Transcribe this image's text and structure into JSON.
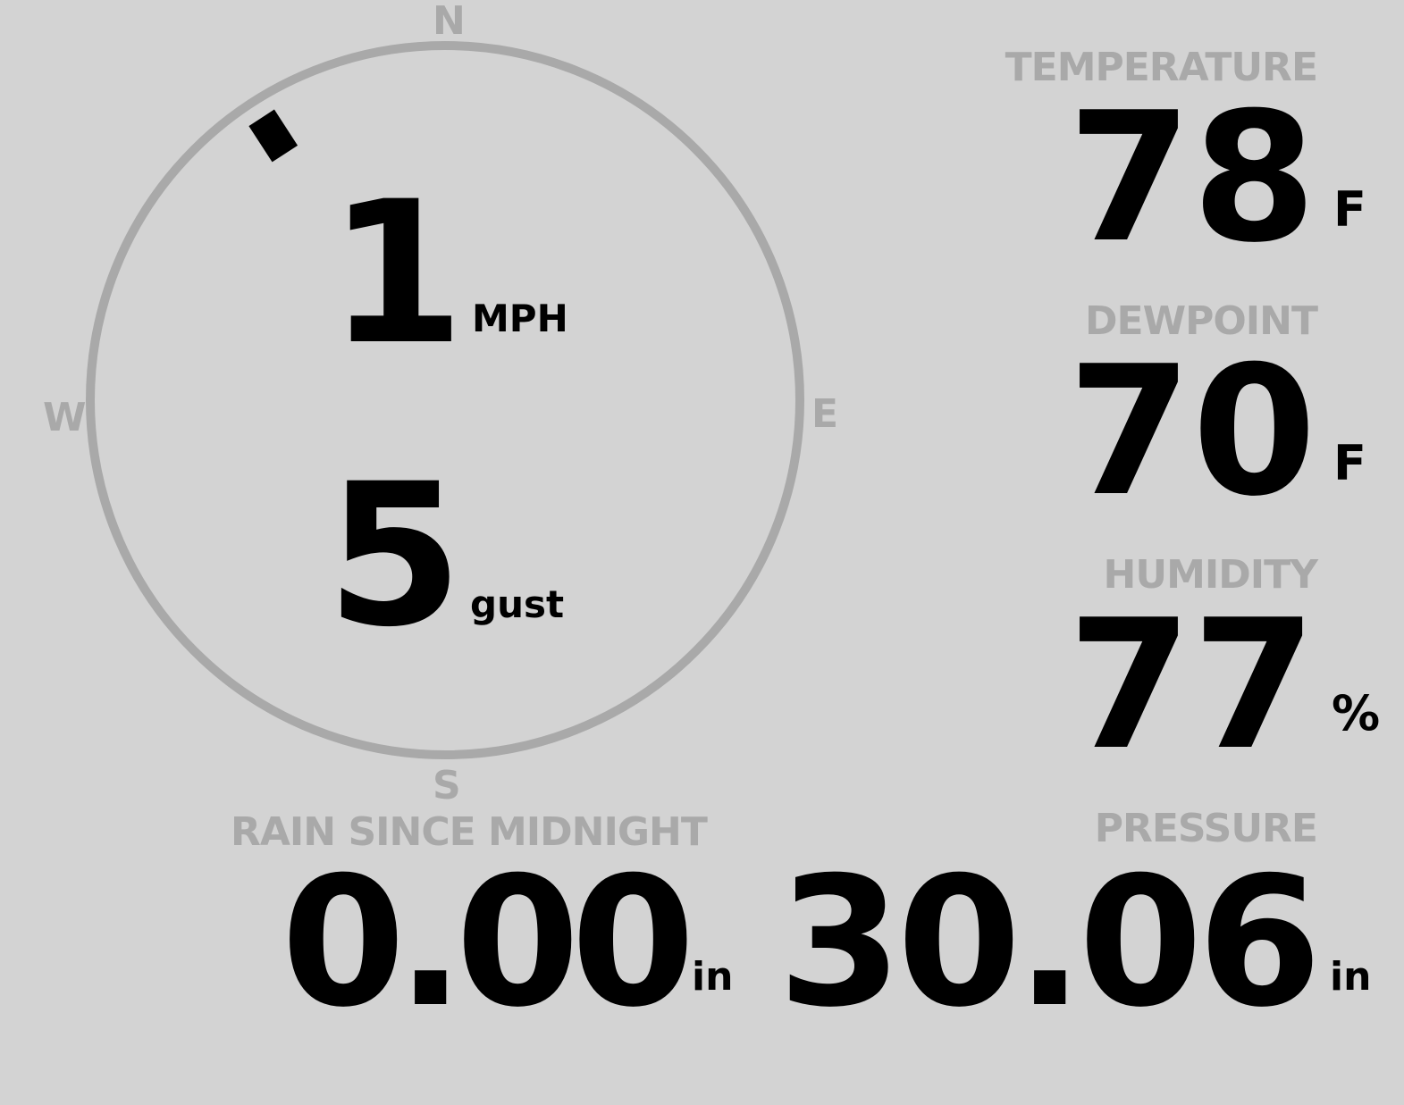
{
  "wind": {
    "speed": "1",
    "speed_unit": "MPH",
    "gust": "5",
    "gust_unit": "gust",
    "direction_deg": 327,
    "cardinals": {
      "n": "N",
      "e": "E",
      "s": "S",
      "w": "W"
    }
  },
  "temperature": {
    "label": "TEMPERATURE",
    "value": "78",
    "unit": "F"
  },
  "dewpoint": {
    "label": "DEWPOINT",
    "value": "70",
    "unit": "F"
  },
  "humidity": {
    "label": "HUMIDITY",
    "value": "77",
    "unit": "%"
  },
  "rain": {
    "label": "RAIN SINCE MIDNIGHT",
    "value": "0.00",
    "unit": "in"
  },
  "pressure": {
    "label": "PRESSURE",
    "value": "30.06",
    "unit": "in"
  },
  "colors": {
    "background": "#d3d3d3",
    "label": "#a9a9a9",
    "value": "#000000"
  }
}
